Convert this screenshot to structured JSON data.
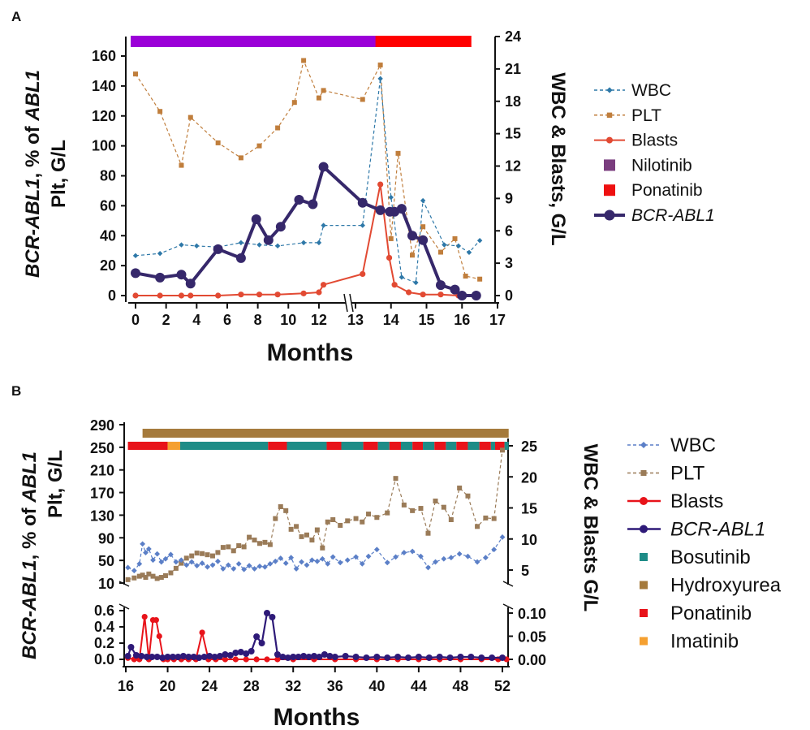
{
  "chart_data": [
    {
      "panel_label": "A",
      "type": "line",
      "xlabel": "Months",
      "ylabel_left_parts": [
        "BCR-ABL1",
        ", % of ",
        "ABL1"
      ],
      "ylabel_left_line2": "Plt, G/L",
      "ylabel_right": "WBC & Blasts, G/L",
      "x_ticks": [
        0,
        2,
        4,
        6,
        8,
        10,
        12,
        13,
        14,
        15,
        16,
        17
      ],
      "y_left_ticks": [
        0,
        20,
        40,
        60,
        80,
        100,
        120,
        140,
        160
      ],
      "y_right_ticks": [
        0,
        3,
        6,
        9,
        12,
        15,
        18,
        21,
        24
      ],
      "ylim_left": [
        0,
        170
      ],
      "ylim_right": [
        0,
        24
      ],
      "treatment_bars": [
        {
          "name": "Nilotinib",
          "color": "#9B00D8",
          "start": 0,
          "end": 13.7
        },
        {
          "name": "Ponatinib",
          "color": "#FF0000",
          "start": 13.7,
          "end": 16.4
        }
      ],
      "legend": [
        {
          "label": "WBC",
          "kind": "dashed-diamond",
          "color": "#2E78A8"
        },
        {
          "label": "PLT",
          "kind": "dashed-square",
          "color": "#C07E3C"
        },
        {
          "label": "Blasts",
          "kind": "line-circle",
          "color": "#E24A33"
        },
        {
          "label": "Nilotinib",
          "kind": "square",
          "color": "#7A3D7E"
        },
        {
          "label": "Ponatinib",
          "kind": "square",
          "color": "#EE1010"
        },
        {
          "label": "BCR-ABL1",
          "kind": "bold-circle",
          "color": "#36286B",
          "italic": true
        }
      ],
      "series": [
        {
          "name": "WBC",
          "axis": "right",
          "color": "#2E78A8",
          "x": [
            0,
            1.6,
            3,
            4,
            5.4,
            6.9,
            8.1,
            9.3,
            11,
            12,
            12.3,
            13.2,
            13.7,
            14,
            14.3,
            14.7,
            14.9,
            15.5,
            15.9,
            16.2,
            16.5
          ],
          "y": [
            3.7,
            3.9,
            4.7,
            4.6,
            4.5,
            4.9,
            4.7,
            4.6,
            4.9,
            4.9,
            6.5,
            6.5,
            20.1,
            9.1,
            1.7,
            1.2,
            8.8,
            4.7,
            4.6,
            4.0,
            5.1
          ]
        },
        {
          "name": "PLT",
          "axis": "left",
          "color": "#C07E3C",
          "x": [
            0,
            1.6,
            3,
            3.6,
            5.4,
            6.9,
            8.1,
            9.3,
            10.4,
            11,
            12,
            12.3,
            13.2,
            13.7,
            14,
            14.2,
            14.6,
            14.9,
            15.4,
            15.8,
            16.1,
            16.5
          ],
          "y": [
            148,
            123,
            87,
            119,
            102,
            92,
            100,
            112,
            129,
            157,
            132,
            137,
            131,
            154,
            38,
            95,
            27,
            46,
            29,
            38,
            13,
            11
          ]
        },
        {
          "name": "Blasts",
          "axis": "right",
          "color": "#E24A33",
          "x": [
            0,
            1.6,
            3,
            3.6,
            5.4,
            6.9,
            8.1,
            9.3,
            11,
            12,
            12.3,
            13.2,
            13.7,
            13.95,
            14.1,
            14.5,
            14.9,
            15.4,
            15.9
          ],
          "y": [
            0,
            0,
            0,
            0,
            0,
            0.1,
            0.1,
            0.1,
            0.2,
            0.3,
            1.0,
            2.0,
            10.3,
            3.5,
            1.0,
            0.3,
            0.1,
            0.1,
            0.0
          ]
        },
        {
          "name": "BCR-ABL1",
          "axis": "left",
          "color": "#36286B",
          "x": [
            0,
            1.6,
            3,
            3.6,
            5.4,
            6.9,
            7.9,
            8.7,
            9.5,
            10.7,
            11.6,
            12.3,
            13.2,
            13.7,
            13.97,
            14.1,
            14.3,
            14.6,
            14.9,
            15.4,
            15.8,
            16.0,
            16.4
          ],
          "y": [
            15,
            12,
            14,
            8,
            31,
            25,
            51,
            37,
            46,
            64,
            61,
            86,
            62,
            57,
            56,
            56,
            58,
            40,
            37,
            7,
            4,
            0,
            0
          ]
        }
      ]
    },
    {
      "panel_label": "B",
      "type": "line",
      "xlabel": "Months",
      "ylabel_left_parts": [
        "BCR-ABL1",
        ", % of ",
        "ABL1"
      ],
      "ylabel_left_line2": "Plt, G/L",
      "ylabel_right": "WBC & Blasts G/L",
      "x_ticks": [
        16,
        20,
        24,
        28,
        32,
        36,
        40,
        44,
        48,
        52
      ],
      "y_left_upper_ticks": [
        10,
        50,
        90,
        130,
        170,
        210,
        250,
        290
      ],
      "y_right_upper_ticks": [
        5,
        10,
        15,
        20,
        25
      ],
      "y_left_lower_ticks": [
        "0.0",
        "0.2",
        "0.4",
        "0.6"
      ],
      "y_right_lower_ticks": [
        "0.00",
        "0.05",
        "0.10"
      ],
      "ylim_upper_left": [
        10,
        290
      ],
      "ylim_upper_right": [
        1.67,
        27.5
      ],
      "ylim_lower_left": [
        -0.05,
        0.65
      ],
      "ylim_lower_right": [
        -0.0083,
        0.108
      ],
      "hydroxyurea_bar": {
        "name": "Hydroxyurea",
        "color": "#A57A3C",
        "start": 17.6,
        "end": 52.6
      },
      "treatment_bars": [
        {
          "name": "Ponatinib",
          "color": "#E8131A",
          "start": 16.2,
          "end": 20.0
        },
        {
          "name": "Imatinib",
          "color": "#F5A030",
          "start": 20.0,
          "end": 21.2
        },
        {
          "name": "Bosutinib",
          "color": "#1E8C87",
          "start": 21.2,
          "end": 29.6
        },
        {
          "name": "Ponatinib",
          "color": "#E8131A",
          "start": 29.6,
          "end": 31.4
        },
        {
          "name": "Bosutinib",
          "color": "#1E8C87",
          "start": 31.4,
          "end": 35.2
        },
        {
          "name": "Ponatinib",
          "color": "#E8131A",
          "start": 35.2,
          "end": 36.6
        },
        {
          "name": "Bosutinib",
          "color": "#1E8C87",
          "start": 36.6,
          "end": 38.7
        },
        {
          "name": "Ponatinib",
          "color": "#E8131A",
          "start": 38.7,
          "end": 40.1
        },
        {
          "name": "Bosutinib",
          "color": "#1E8C87",
          "start": 40.1,
          "end": 41.2
        },
        {
          "name": "Ponatinib",
          "color": "#E8131A",
          "start": 41.2,
          "end": 42.3
        },
        {
          "name": "Bosutinib",
          "color": "#1E8C87",
          "start": 42.3,
          "end": 43.4
        },
        {
          "name": "Ponatinib",
          "color": "#E8131A",
          "start": 43.4,
          "end": 44.4
        },
        {
          "name": "Bosutinib",
          "color": "#1E8C87",
          "start": 44.4,
          "end": 45.5
        },
        {
          "name": "Ponatinib",
          "color": "#E8131A",
          "start": 45.5,
          "end": 46.6
        },
        {
          "name": "Bosutinib",
          "color": "#1E8C87",
          "start": 46.6,
          "end": 47.6
        },
        {
          "name": "Ponatinib",
          "color": "#E8131A",
          "start": 47.6,
          "end": 48.7
        },
        {
          "name": "Bosutinib",
          "color": "#1E8C87",
          "start": 48.7,
          "end": 49.8
        },
        {
          "name": "Ponatinib",
          "color": "#E8131A",
          "start": 49.8,
          "end": 50.9
        },
        {
          "name": "Bosutinib",
          "color": "#1E8C87",
          "start": 50.9,
          "end": 51.3
        },
        {
          "name": "Ponatinib",
          "color": "#E8131A",
          "start": 51.3,
          "end": 52.2
        },
        {
          "name": "Bosutinib",
          "color": "#1E8C87",
          "start": 52.2,
          "end": 52.6
        }
      ],
      "legend": [
        {
          "label": "WBC",
          "kind": "dashed-diamond",
          "color": "#5B7FC7"
        },
        {
          "label": "PLT",
          "kind": "dashed-square",
          "color": "#9A7B58"
        },
        {
          "label": "Blasts",
          "kind": "line-circle",
          "color": "#E8131A"
        },
        {
          "label": "BCR-ABL1",
          "kind": "bold-circle",
          "color": "#2E1A78",
          "italic": true
        },
        {
          "label": "Bosutinib",
          "kind": "square",
          "color": "#1E8C87"
        },
        {
          "label": "Hydroxyurea",
          "kind": "square",
          "color": "#A57A3C"
        },
        {
          "label": "Ponatinib",
          "kind": "square",
          "color": "#E8131A"
        },
        {
          "label": "Imatinib",
          "kind": "square",
          "color": "#F5A030"
        }
      ],
      "series": [
        {
          "name": "WBC",
          "axis": "upper-right",
          "color": "#5B7FC7",
          "x": [
            16.2,
            16.8,
            17.3,
            17.6,
            17.9,
            18.2,
            18.6,
            19.0,
            19.4,
            19.8,
            20.3,
            20.8,
            21.3,
            21.8,
            22.3,
            22.8,
            23.3,
            23.8,
            24.3,
            24.8,
            25.3,
            25.8,
            26.3,
            26.8,
            27.3,
            27.8,
            28.3,
            28.8,
            29.3,
            29.8,
            30.3,
            30.8,
            31.3,
            31.8,
            32.3,
            32.8,
            33.3,
            33.8,
            34.3,
            34.8,
            35.3,
            35.8,
            36.5,
            37.2,
            38.0,
            38.6,
            39.2,
            40.0,
            41.0,
            41.8,
            42.6,
            43.4,
            44.2,
            44.9,
            45.6,
            46.4,
            47.1,
            47.9,
            48.7,
            49.6,
            50.4,
            51.2,
            52.0
          ],
          "y": [
            5.4,
            4.9,
            6.0,
            9.2,
            7.8,
            8.4,
            6.6,
            7.6,
            6.3,
            6.8,
            7.5,
            6.3,
            6.6,
            5.8,
            6.3,
            5.7,
            6.1,
            5.5,
            5.8,
            6.4,
            5.2,
            5.8,
            5.2,
            6.0,
            5.1,
            5.7,
            5.2,
            5.6,
            5.5,
            6.0,
            6.4,
            6.9,
            6.1,
            7.0,
            5.2,
            6.3,
            5.8,
            6.6,
            6.4,
            6.8,
            6.0,
            7.1,
            6.2,
            6.6,
            7.1,
            6.0,
            7.2,
            8.3,
            6.2,
            7.1,
            7.8,
            8.0,
            7.2,
            5.4,
            6.3,
            6.8,
            7.0,
            7.6,
            7.2,
            6.3,
            7.0,
            8.3,
            10.3
          ]
        },
        {
          "name": "PLT",
          "axis": "upper-left",
          "color": "#9A7B58",
          "x": [
            16.2,
            16.8,
            17.3,
            17.6,
            17.9,
            18.2,
            18.6,
            19.0,
            19.4,
            19.8,
            20.3,
            20.8,
            21.3,
            21.8,
            22.3,
            22.8,
            23.3,
            23.8,
            24.3,
            24.8,
            25.3,
            25.8,
            26.3,
            26.8,
            27.3,
            27.8,
            28.3,
            28.8,
            29.3,
            29.8,
            30.3,
            30.8,
            31.3,
            31.8,
            32.3,
            32.8,
            33.3,
            33.8,
            34.3,
            34.8,
            35.3,
            35.8,
            36.5,
            37.2,
            38.0,
            38.6,
            39.2,
            40.0,
            41.0,
            41.8,
            42.6,
            43.4,
            44.2,
            44.9,
            45.6,
            46.4,
            47.1,
            47.9,
            48.7,
            49.6,
            50.4,
            51.2,
            52.0
          ],
          "y": [
            16,
            19,
            22,
            24,
            20,
            26,
            22,
            18,
            20,
            23,
            28,
            36,
            45,
            54,
            58,
            63,
            62,
            60,
            58,
            64,
            73,
            74,
            67,
            76,
            74,
            91,
            86,
            80,
            82,
            78,
            124,
            145,
            138,
            105,
            110,
            92,
            95,
            86,
            104,
            72,
            118,
            122,
            112,
            120,
            124,
            118,
            132,
            126,
            134,
            195,
            148,
            138,
            142,
            98,
            155,
            144,
            122,
            178,
            164,
            110,
            125,
            124,
            245
          ]
        },
        {
          "name": "Blasts",
          "axis": "lower-right",
          "color": "#E8131A",
          "x": [
            16.2,
            16.8,
            17.3,
            17.8,
            18.2,
            18.6,
            18.9,
            19.2,
            19.6,
            20.0,
            20.6,
            21.3,
            22.0,
            22.7,
            23.3,
            23.9,
            24.6,
            25.5,
            26.5,
            27.5,
            28.5,
            29.5,
            30.5,
            32.0,
            34.0,
            36.0,
            38.0,
            40.0,
            42.0,
            44.0,
            46.0,
            48.0,
            50.0,
            51.6,
            52.4
          ],
          "y": [
            0.003,
            0.0,
            0.0,
            0.092,
            0.0,
            0.085,
            0.085,
            0.05,
            0.0,
            0.0,
            0.0,
            0.0,
            0.0,
            0.0,
            0.058,
            0.0,
            0.0,
            0.0,
            0.0,
            0.0,
            0.0,
            0.0,
            0.0,
            0.0,
            0.0,
            0.0,
            0.0,
            0.0,
            0.0,
            0.0,
            0.0,
            0.0,
            0.0,
            0.0,
            0.0
          ]
        },
        {
          "name": "BCR-ABL1",
          "axis": "lower-left",
          "color": "#2E1A78",
          "x": [
            16.2,
            16.5,
            17.0,
            17.5,
            18.0,
            18.5,
            19.0,
            19.5,
            20.0,
            20.5,
            21.0,
            21.5,
            22.0,
            22.5,
            23.0,
            23.5,
            24.0,
            24.5,
            25.0,
            25.5,
            26.0,
            26.5,
            27.0,
            27.5,
            28.0,
            28.5,
            29.0,
            29.5,
            30.0,
            30.5,
            31.0,
            31.5,
            32.0,
            32.5,
            33.0,
            33.5,
            34.0,
            34.5,
            35.0,
            35.5,
            36.0,
            37.0,
            38.0,
            39.0,
            40.0,
            41.0,
            42.0,
            43.0,
            44.0,
            45.0,
            46.0,
            47.0,
            48.0,
            49.0,
            50.0,
            51.0,
            52.0
          ],
          "y": [
            0.04,
            0.15,
            0.05,
            0.04,
            0.03,
            0.03,
            0.03,
            0.02,
            0.03,
            0.03,
            0.03,
            0.04,
            0.03,
            0.03,
            0.02,
            0.03,
            0.04,
            0.03,
            0.04,
            0.06,
            0.05,
            0.08,
            0.09,
            0.07,
            0.1,
            0.28,
            0.2,
            0.57,
            0.52,
            0.06,
            0.03,
            0.02,
            0.03,
            0.03,
            0.04,
            0.03,
            0.04,
            0.03,
            0.06,
            0.04,
            0.03,
            0.04,
            0.03,
            0.02,
            0.03,
            0.02,
            0.03,
            0.02,
            0.03,
            0.02,
            0.03,
            0.02,
            0.03,
            0.03,
            0.02,
            0.02,
            0.02
          ]
        }
      ]
    }
  ]
}
